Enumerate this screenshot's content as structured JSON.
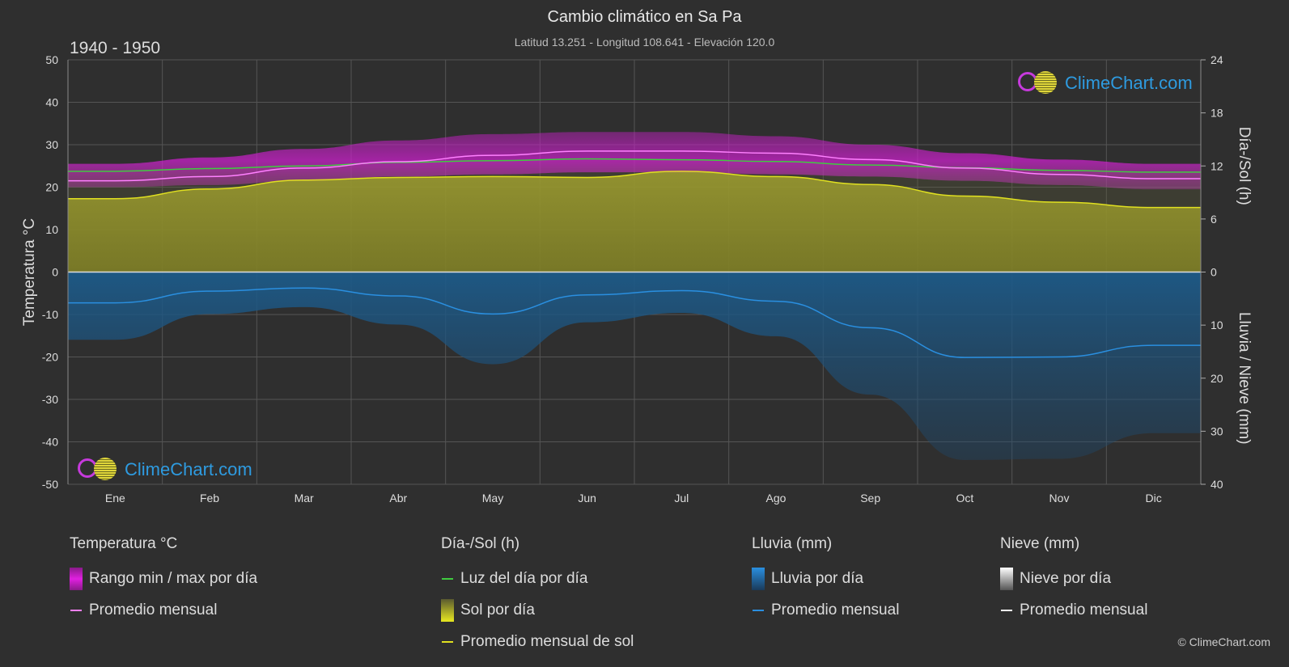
{
  "header": {
    "title": "Cambio climático en Sa Pa",
    "subtitle": "Latitud 13.251 - Longitud 108.641 - Elevación 120.0",
    "period": "1940 - 1950"
  },
  "logo": {
    "text": "ClimeChart.com"
  },
  "copyright": "© ClimeChart.com",
  "colors": {
    "background": "#2f2f2f",
    "temp_range": "#d020d0",
    "temp_avg": "#ff80ff",
    "daylight": "#40cc40",
    "sun_fill": "#8a8a2a",
    "sun_avg": "#e0e020",
    "rain_fill": "#1e5e8e",
    "rain_avg": "#2a8fe0",
    "snow_avg": "#ffffff",
    "logo_text": "#2e9be0"
  },
  "chart_data": {
    "type": "area",
    "months": [
      "Ene",
      "Feb",
      "Mar",
      "Abr",
      "May",
      "Jun",
      "Jul",
      "Ago",
      "Sep",
      "Oct",
      "Nov",
      "Dic"
    ],
    "left_axis": {
      "label": "Temperatura °C",
      "min": -50,
      "max": 50,
      "ticks": [
        50,
        40,
        30,
        20,
        10,
        0,
        -10,
        -20,
        -30,
        -40,
        -50
      ]
    },
    "right_axis_top": {
      "label": "Día-/Sol (h)",
      "min": 0,
      "max": 24,
      "ticks": [
        24,
        18,
        12,
        6,
        0
      ]
    },
    "right_axis_bottom": {
      "label": "Lluvia / Nieve (mm)",
      "min": 0,
      "max": 40,
      "ticks": [
        0,
        10,
        20,
        30,
        40
      ]
    },
    "grid": true,
    "series": [
      {
        "name": "Rango min / max por día",
        "kind": "band",
        "axis": "temp",
        "min": [
          20.0,
          20.5,
          21.5,
          22.5,
          23.0,
          23.5,
          23.5,
          23.0,
          22.5,
          21.5,
          20.5,
          19.5
        ],
        "max": [
          25.5,
          27.0,
          29.0,
          31.0,
          32.5,
          33.0,
          33.0,
          32.0,
          30.0,
          28.0,
          26.5,
          25.5
        ]
      },
      {
        "name": "Promedio mensual",
        "kind": "line",
        "axis": "temp",
        "values": [
          21.5,
          22.5,
          24.5,
          26.0,
          27.5,
          28.5,
          28.5,
          28.0,
          26.5,
          24.5,
          23.0,
          22.0
        ]
      },
      {
        "name": "Luz del día por día",
        "kind": "line",
        "axis": "sun",
        "values": [
          11.4,
          11.7,
          12.0,
          12.4,
          12.6,
          12.8,
          12.7,
          12.5,
          12.1,
          11.8,
          11.5,
          11.3
        ]
      },
      {
        "name": "Promedio mensual de sol",
        "kind": "line",
        "axis": "sun",
        "values": [
          8.3,
          9.4,
          10.4,
          10.7,
          10.8,
          10.7,
          11.4,
          10.8,
          9.9,
          8.6,
          7.9,
          7.3
        ]
      },
      {
        "name": "Promedio mensual",
        "kind": "line",
        "axis": "rain",
        "values": [
          5.8,
          3.6,
          3.0,
          4.5,
          7.9,
          4.3,
          3.5,
          5.5,
          10.5,
          16.1,
          16.0,
          13.8
        ]
      }
    ],
    "legend": {
      "groups": [
        {
          "title": "Temperatura °C",
          "items": [
            {
              "label": "Rango min / max por día",
              "swatch": "box-temp"
            },
            {
              "label": "Promedio mensual",
              "swatch": "line-temp"
            }
          ]
        },
        {
          "title": "Día-/Sol (h)",
          "items": [
            {
              "label": "Luz del día por día",
              "swatch": "line-daylight"
            },
            {
              "label": "Sol por día",
              "swatch": "box-sun"
            },
            {
              "label": "Promedio mensual de sol",
              "swatch": "line-sun"
            }
          ]
        },
        {
          "title": "Lluvia (mm)",
          "items": [
            {
              "label": "Lluvia por día",
              "swatch": "box-rain"
            },
            {
              "label": "Promedio mensual",
              "swatch": "line-rain"
            }
          ]
        },
        {
          "title": "Nieve (mm)",
          "items": [
            {
              "label": "Nieve por día",
              "swatch": "box-snow"
            },
            {
              "label": "Promedio mensual",
              "swatch": "line-snow"
            }
          ]
        }
      ]
    }
  }
}
